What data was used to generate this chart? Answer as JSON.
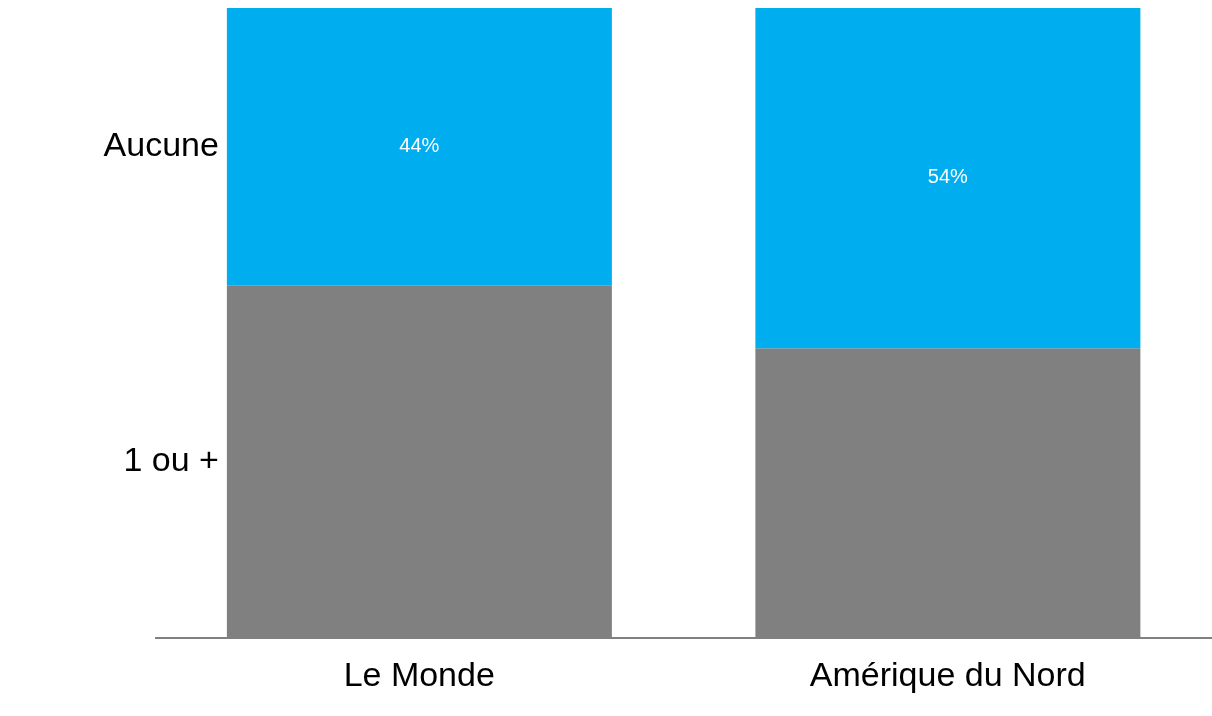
{
  "chart_data": {
    "type": "bar",
    "stacked": true,
    "categories": [
      "Le Monde",
      "Amérique du Nord"
    ],
    "series": [
      {
        "name": "1 ou +",
        "color": "#808080",
        "values": [
          56,
          46
        ]
      },
      {
        "name": "Aucune",
        "color": "#00aeef",
        "values": [
          44,
          54
        ],
        "value_labels": [
          "44%",
          "54%"
        ]
      }
    ],
    "ylim": [
      0,
      100
    ],
    "tick_labels": "x"
  }
}
